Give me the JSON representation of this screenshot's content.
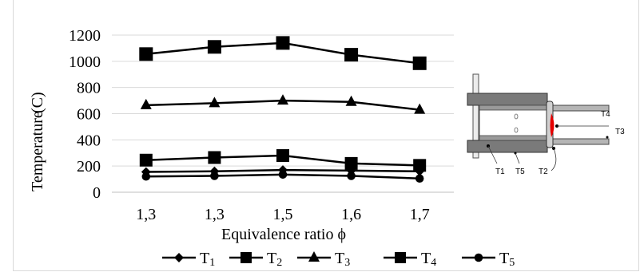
{
  "chart_data": {
    "type": "line",
    "categories": [
      "1,3",
      "1,3",
      "1,5",
      "1,6",
      "1,7"
    ],
    "xlabel": "Equivalence ratio ϕ",
    "ylabel_main": "Temperature",
    "ylabel_unit": "(C)",
    "ylim": [
      0,
      1200
    ],
    "yticks": [
      0,
      200,
      400,
      600,
      800,
      1000,
      1200
    ],
    "grid": "horizontal",
    "legend_position": "bottom",
    "series": [
      {
        "name": "T",
        "sub": "1",
        "marker": "diamond",
        "values": [
          155,
          160,
          170,
          165,
          160
        ]
      },
      {
        "name": "T",
        "sub": "2",
        "marker": "square",
        "values": [
          245,
          265,
          280,
          220,
          205
        ]
      },
      {
        "name": "T",
        "sub": "3",
        "marker": "triangle",
        "values": [
          665,
          680,
          700,
          690,
          630
        ]
      },
      {
        "name": "T",
        "sub": "4",
        "marker": "square",
        "values": [
          1055,
          1110,
          1140,
          1050,
          985
        ]
      },
      {
        "name": "T",
        "sub": "5",
        "marker": "circle",
        "values": [
          120,
          125,
          135,
          125,
          105
        ]
      }
    ]
  },
  "diagram": {
    "labels": [
      "T4",
      "T3",
      "T1",
      "T5",
      "T2"
    ]
  }
}
